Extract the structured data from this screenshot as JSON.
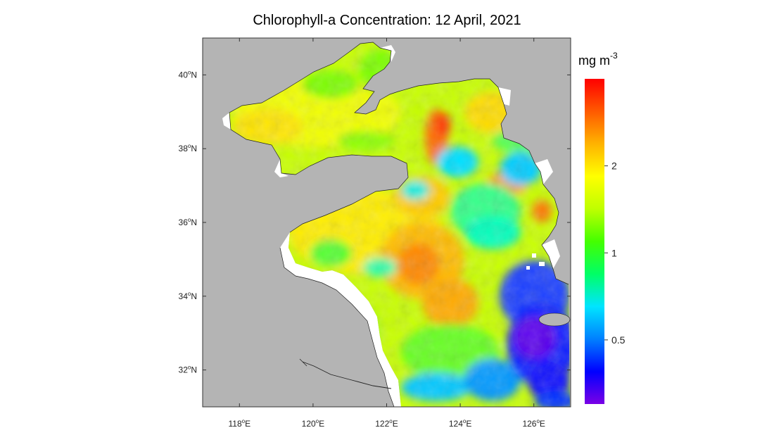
{
  "title": "Chlorophyll-a Concentration: 12 April, 2021",
  "map": {
    "region_extent": {
      "lon": [
        117,
        127
      ],
      "lat": [
        31,
        41
      ]
    },
    "land_color": "#b4b4b4",
    "no_data_color": "#ffffff",
    "lon_ticks": [
      {
        "value": 118,
        "deg": "118",
        "hemi": "E"
      },
      {
        "value": 120,
        "deg": "120",
        "hemi": "E"
      },
      {
        "value": 122,
        "deg": "122",
        "hemi": "E"
      },
      {
        "value": 124,
        "deg": "124",
        "hemi": "E"
      },
      {
        "value": 126,
        "deg": "126",
        "hemi": "E"
      }
    ],
    "lat_ticks": [
      {
        "value": 32,
        "deg": "32",
        "hemi": "N"
      },
      {
        "value": 34,
        "deg": "34",
        "hemi": "N"
      },
      {
        "value": 36,
        "deg": "36",
        "hemi": "N"
      },
      {
        "value": 38,
        "deg": "38",
        "hemi": "N"
      },
      {
        "value": 40,
        "deg": "40",
        "hemi": "N"
      }
    ]
  },
  "colorbar": {
    "unit_base": "mg m",
    "unit_exponent": "-3",
    "scale": "log",
    "range": [
      0.3,
      4.0
    ],
    "ticks": [
      {
        "value": 0.5,
        "label": "0.5"
      },
      {
        "value": 1,
        "label": "1"
      },
      {
        "value": 2,
        "label": "2"
      }
    ],
    "colors": [
      "#7a00e6",
      "#0000ff",
      "#0080ff",
      "#00e5ff",
      "#00ff66",
      "#44ff00",
      "#bfff00",
      "#ffff00",
      "#ffb300",
      "#ff5a00",
      "#ff0000"
    ]
  }
}
